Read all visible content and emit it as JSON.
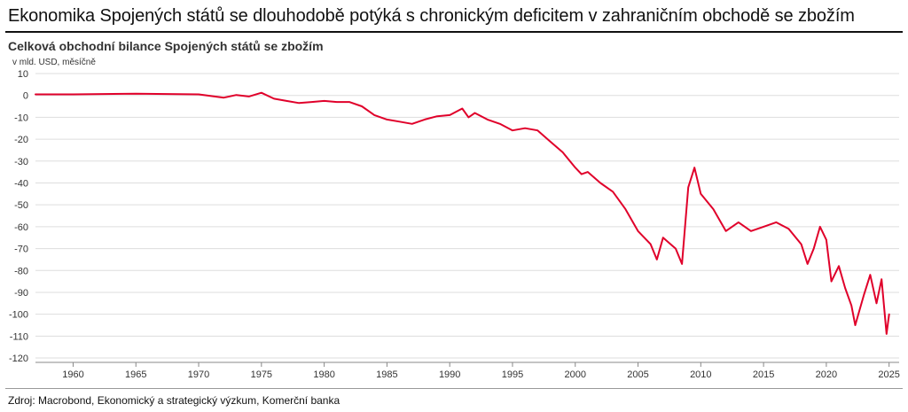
{
  "headline": "Ekonomika Spojených států se dlouhodobě potýká s chronickým deficitem v zahraničním obchodě se zbožím",
  "source": "Zdroj: Macrobond, Ekonomický a strategický výzkum, Komerční banka",
  "colors": {
    "series": "#e0002a",
    "grid": "#dddddd",
    "axis": "#888888",
    "text": "#333333"
  },
  "chart_data": {
    "type": "line",
    "title": "Celková obchodní bilance Spojených států se zbožím",
    "ylabel": "v mld. USD, měsíčně",
    "xlabel": "",
    "xlim": [
      1957,
      2025.8
    ],
    "ylim": [
      -122,
      10
    ],
    "x_ticks": [
      1960,
      1965,
      1970,
      1975,
      1980,
      1985,
      1990,
      1995,
      2000,
      2005,
      2010,
      2015,
      2020,
      2025
    ],
    "y_ticks": [
      10,
      0,
      -10,
      -20,
      -30,
      -40,
      -50,
      -60,
      -70,
      -80,
      -90,
      -100,
      -110,
      -120
    ],
    "grid": "horizontal",
    "legend": "none",
    "series": [
      {
        "name": "",
        "x": [
          1957,
          1960,
          1965,
          1970,
          1972,
          1973,
          1974,
          1975,
          1976,
          1977,
          1978,
          1979,
          1980,
          1981,
          1982,
          1983,
          1984,
          1985,
          1986,
          1987,
          1988,
          1989,
          1990,
          1991,
          1991.5,
          1992,
          1993,
          1994,
          1995,
          1996,
          1997,
          1998,
          1999,
          2000,
          2000.5,
          2001,
          2002,
          2003,
          2004,
          2005,
          2006,
          2006.5,
          2007,
          2008,
          2008.5,
          2009,
          2009.5,
          2010,
          2011,
          2012,
          2013,
          2014,
          2015,
          2016,
          2017,
          2018,
          2018.5,
          2019,
          2019.5,
          2020,
          2020.4,
          2021,
          2021.5,
          2022,
          2022.3,
          2023,
          2023.5,
          2024,
          2024.4,
          2024.8,
          2025
        ],
        "y": [
          0.5,
          0.5,
          0.8,
          0.5,
          -1,
          0.2,
          -0.5,
          1.2,
          -1.5,
          -2.5,
          -3.5,
          -3,
          -2.5,
          -3,
          -3,
          -5,
          -9,
          -11,
          -12,
          -13,
          -11,
          -9.5,
          -9,
          -6,
          -10,
          -8,
          -11,
          -13,
          -16,
          -15,
          -16,
          -21,
          -26,
          -33,
          -36,
          -35,
          -40,
          -44,
          -52,
          -62,
          -68,
          -75,
          -65,
          -70,
          -77,
          -42,
          -33,
          -45,
          -52,
          -62,
          -58,
          -62,
          -60,
          -58,
          -61,
          -68,
          -77,
          -70,
          -60,
          -66,
          -85,
          -78,
          -88,
          -96,
          -105,
          -91,
          -82,
          -95,
          -84,
          -109,
          -100
        ]
      }
    ]
  }
}
